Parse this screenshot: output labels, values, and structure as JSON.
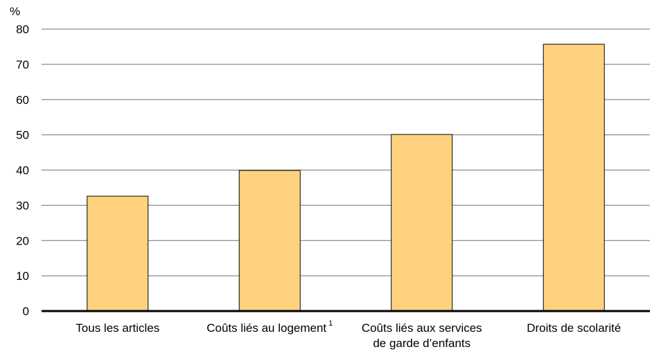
{
  "chart_data": {
    "type": "bar",
    "ylabel": "%",
    "ylim": [
      0,
      80
    ],
    "yticks": [
      0,
      10,
      20,
      30,
      40,
      50,
      60,
      70,
      80
    ],
    "categories": [
      {
        "lines": [
          "Tous les articles"
        ],
        "footnote": ""
      },
      {
        "lines": [
          "Coûts liés au logement"
        ],
        "footnote": "1"
      },
      {
        "lines": [
          "Coûts liés aux services",
          "de garde d’enfants"
        ],
        "footnote": ""
      },
      {
        "lines": [
          "Droits de scolarité"
        ],
        "footnote": ""
      }
    ],
    "values": [
      32.6,
      39.9,
      50.1,
      75.7
    ],
    "grid": true,
    "colors": {
      "bar": "#FFD27F",
      "bar_border": "#000000",
      "grid": "#8C8C8C",
      "axis": "#000000"
    }
  }
}
